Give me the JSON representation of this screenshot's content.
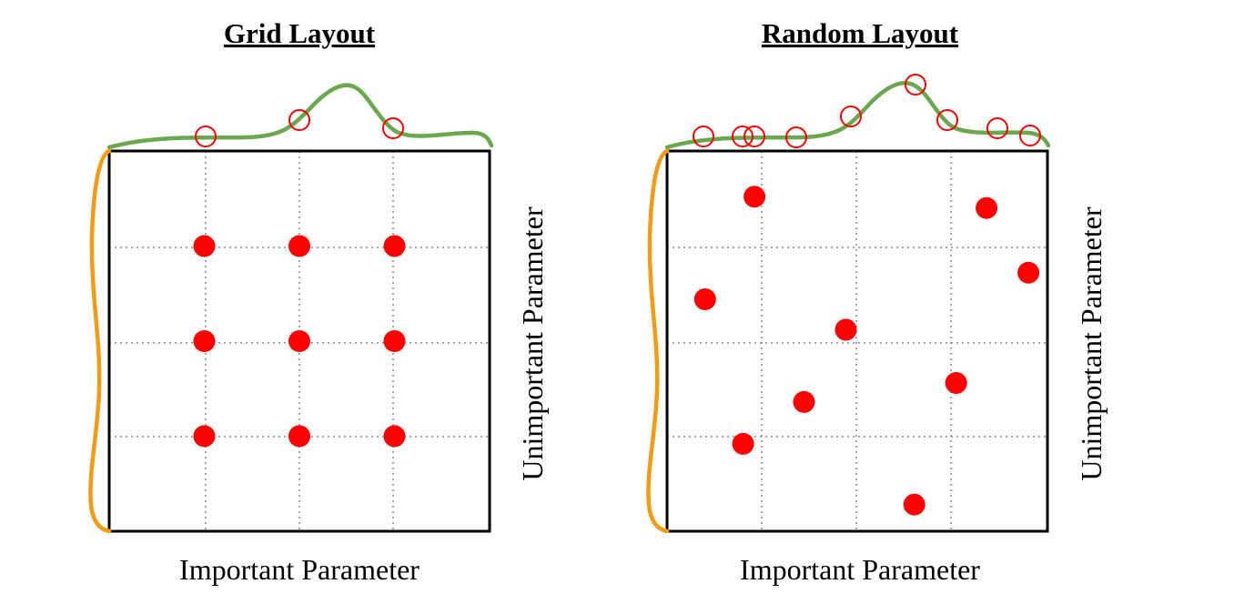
{
  "panels": {
    "grid": {
      "title": "Grid Layout",
      "x_label": "Important Parameter",
      "y_label": "Unimportant Parameter",
      "points": [
        [
          0.25,
          0.75
        ],
        [
          0.5,
          0.75
        ],
        [
          0.75,
          0.75
        ],
        [
          0.25,
          0.5
        ],
        [
          0.5,
          0.5
        ],
        [
          0.75,
          0.5
        ],
        [
          0.25,
          0.25
        ],
        [
          0.5,
          0.25
        ],
        [
          0.75,
          0.25
        ]
      ]
    },
    "random": {
      "title": "Random Layout",
      "x_label": "Important Parameter",
      "y_label": "Unimportant Parameter",
      "points": [
        [
          0.23,
          0.88
        ],
        [
          0.84,
          0.85
        ],
        [
          0.95,
          0.68
        ],
        [
          0.1,
          0.61
        ],
        [
          0.47,
          0.53
        ],
        [
          0.76,
          0.39
        ],
        [
          0.36,
          0.34
        ],
        [
          0.2,
          0.23
        ],
        [
          0.65,
          0.07
        ]
      ]
    }
  },
  "colors": {
    "point": "#ff0000",
    "important_curve": "#6aa84f",
    "unimportant_curve": "#f39c12",
    "frame": "#000000",
    "grid": "#888888"
  }
}
